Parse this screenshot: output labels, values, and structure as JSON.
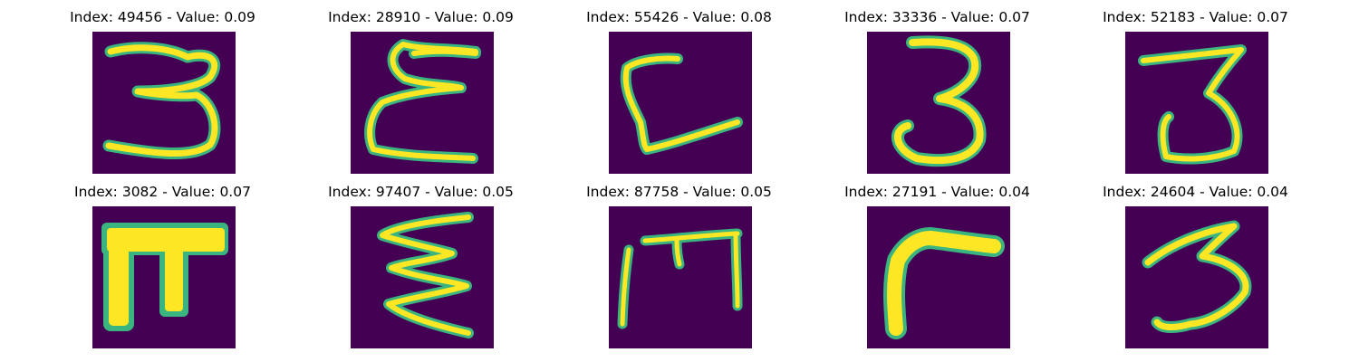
{
  "colors": {
    "background": "#440154",
    "stroke_core": "#fde725",
    "stroke_edge": "#3ab57f"
  },
  "panels": [
    {
      "index": "49456",
      "value": "0.09",
      "title": "Index: 49456 - Value: 0.09"
    },
    {
      "index": "28910",
      "value": "0.09",
      "title": "Index: 28910 - Value: 0.09"
    },
    {
      "index": "55426",
      "value": "0.08",
      "title": "Index: 55426 - Value: 0.08"
    },
    {
      "index": "33336",
      "value": "0.07",
      "title": "Index: 33336 - Value: 0.07"
    },
    {
      "index": "52183",
      "value": "0.07",
      "title": "Index: 52183 - Value: 0.07"
    },
    {
      "index": "3082",
      "value": "0.07",
      "title": "Index: 3082 - Value: 0.07"
    },
    {
      "index": "97407",
      "value": "0.05",
      "title": "Index: 97407 - Value: 0.05"
    },
    {
      "index": "87758",
      "value": "0.05",
      "title": "Index: 87758 - Value: 0.05"
    },
    {
      "index": "27191",
      "value": "0.04",
      "title": "Index: 27191 - Value: 0.04"
    },
    {
      "index": "24604",
      "value": "0.04",
      "title": "Index: 24604 - Value: 0.04"
    }
  ]
}
